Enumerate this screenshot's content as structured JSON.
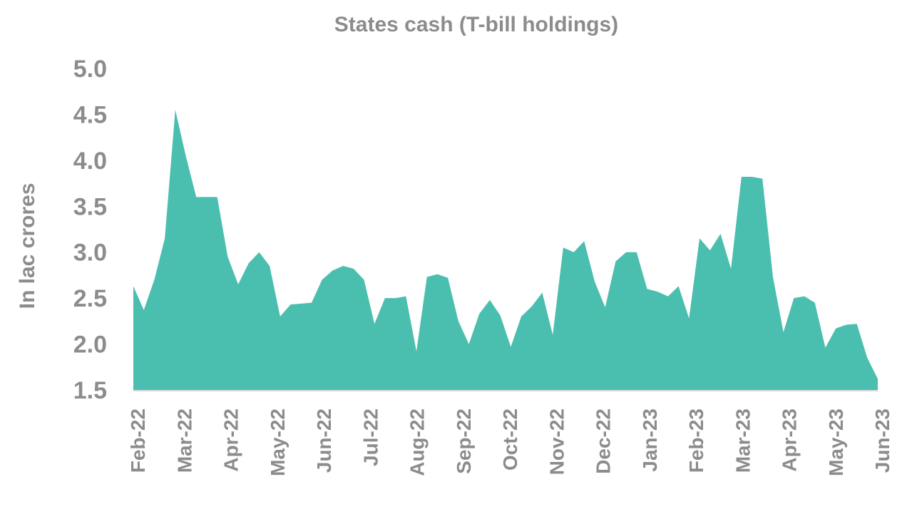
{
  "chart_data": {
    "type": "area",
    "title": "States cash (T-bill holdings)",
    "ylabel": "In lac crores",
    "xlabel": "",
    "ylim": [
      1.5,
      5.0
    ],
    "yticks": [
      "5.0",
      "4.5",
      "4.0",
      "3.5",
      "3.0",
      "2.5",
      "2.0",
      "1.5"
    ],
    "ytick_values": [
      5.0,
      4.5,
      4.0,
      3.5,
      3.0,
      2.5,
      2.0,
      1.5
    ],
    "grid": false,
    "legend": "none",
    "xticks": [
      "Feb-22",
      "Mar-22",
      "Apr-22",
      "May-22",
      "Jun-22",
      "Jul-22",
      "Aug-22",
      "Sep-22",
      "Oct-22",
      "Nov-22",
      "Dec-22",
      "Jan-23",
      "Feb-23",
      "Mar-23",
      "Apr-23",
      "May-23",
      "Jun-23"
    ],
    "series": [
      {
        "values": [
          2.63,
          2.37,
          2.7,
          3.15,
          4.55,
          4.05,
          3.6,
          3.6,
          3.6,
          2.95,
          2.65,
          2.88,
          3.0,
          2.85,
          2.3,
          2.43,
          2.44,
          2.45,
          2.7,
          2.8,
          2.85,
          2.82,
          2.7,
          2.22,
          2.5,
          2.5,
          2.52,
          1.92,
          2.73,
          2.76,
          2.72,
          2.25,
          2.0,
          2.33,
          2.48,
          2.31,
          1.97,
          2.3,
          2.41,
          2.56,
          2.1,
          3.05,
          3.0,
          3.12,
          2.68,
          2.4,
          2.9,
          3.0,
          3.0,
          2.6,
          2.57,
          2.52,
          2.63,
          2.28,
          3.15,
          3.02,
          3.2,
          2.82,
          3.82,
          3.82,
          3.8,
          2.73,
          2.13,
          2.5,
          2.52,
          2.45,
          1.96,
          2.17,
          2.21,
          2.22,
          1.85,
          1.62
        ]
      }
    ],
    "colors": {
      "fill": "#4bbfaf",
      "text": "#8c8c8c",
      "baseline": "#d9d9d9"
    }
  }
}
